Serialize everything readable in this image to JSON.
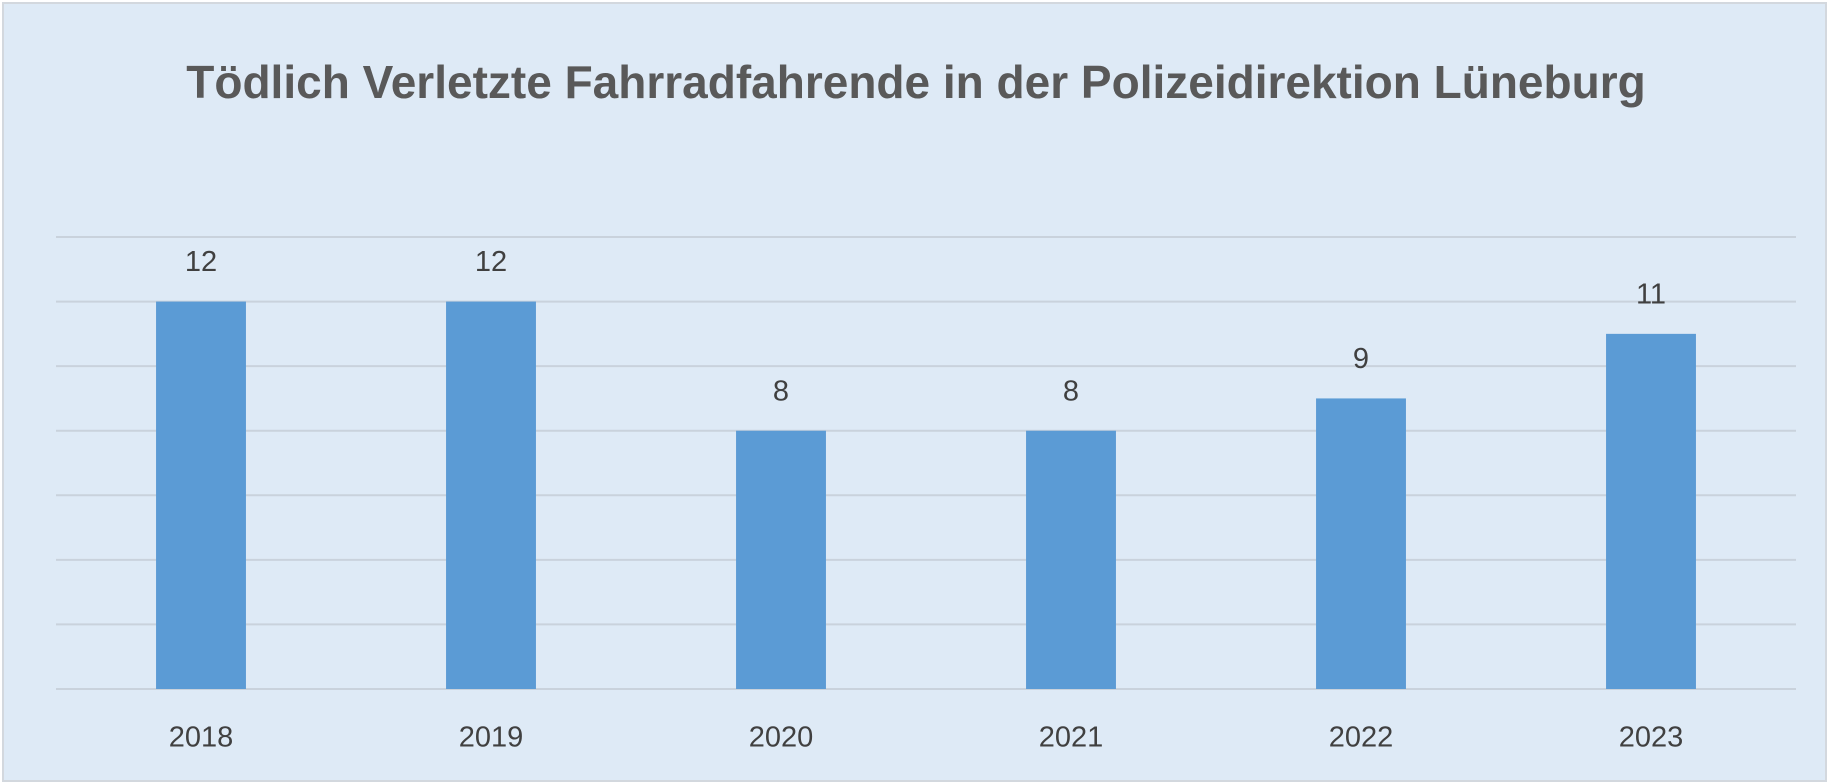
{
  "chart_data": {
    "type": "bar",
    "title": "Tödlich Verletzte Fahrradfahrende in der Polizeidirektion Lüneburg",
    "categories": [
      "2018",
      "2019",
      "2020",
      "2021",
      "2022",
      "2023"
    ],
    "values": [
      12,
      12,
      8,
      8,
      9,
      11
    ],
    "color": "#5b9bd5",
    "ylim": [
      0,
      14
    ],
    "yticks": [
      0,
      2,
      4,
      6,
      8,
      10,
      12,
      14
    ],
    "grid": true,
    "data_labels": true
  }
}
